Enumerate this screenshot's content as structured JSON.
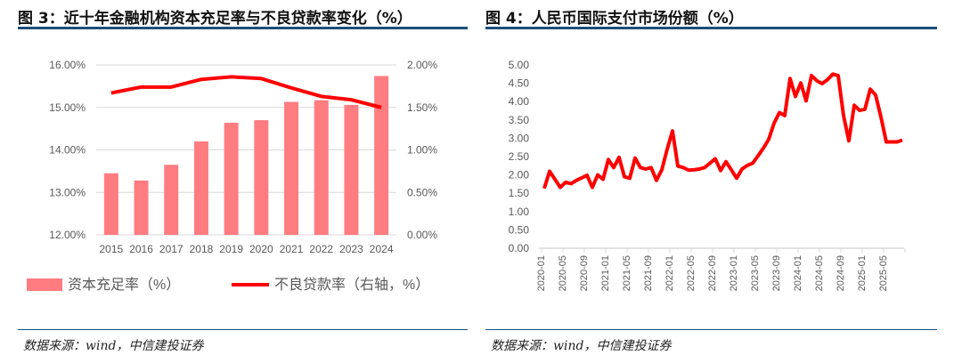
{
  "left": {
    "title": "图 3：近十年金融机构资本充足率与不良贷款率变化（%）",
    "source": "数据来源：wind，中信建投证券"
  },
  "right": {
    "title": "图 4：人民币国际支付市场份额（%）",
    "source": "数据来源：wind，中信建投证券"
  },
  "chart_data": [
    {
      "type": "bar+line",
      "title": "近十年金融机构资本充足率与不良贷款率变化（%）",
      "categories": [
        "2015",
        "2016",
        "2017",
        "2018",
        "2019",
        "2020",
        "2021",
        "2022",
        "2023",
        "2024"
      ],
      "series": [
        {
          "name": "资本充足率（%）",
          "type": "bar",
          "axis": "left",
          "color": "#ff7c80",
          "values": [
            13.45,
            13.28,
            13.65,
            14.2,
            14.64,
            14.7,
            15.13,
            15.17,
            15.06,
            15.74
          ]
        },
        {
          "name": "不良贷款率（右轴，%）",
          "type": "line",
          "axis": "right",
          "color": "#ff0000",
          "values": [
            1.67,
            1.74,
            1.74,
            1.83,
            1.86,
            1.84,
            1.73,
            1.63,
            1.59,
            1.5
          ]
        }
      ],
      "yleft": {
        "lim": [
          12,
          16
        ],
        "ticks": [
          "12.00%",
          "13.00%",
          "14.00%",
          "15.00%",
          "16.00%"
        ]
      },
      "yright": {
        "lim": [
          0,
          2
        ],
        "ticks": [
          "0.00%",
          "0.50%",
          "1.00%",
          "1.50%",
          "2.00%"
        ]
      },
      "legend": "bottom"
    },
    {
      "type": "line",
      "title": "人民币国际支付市场份额（%）",
      "x_start": "2020-01",
      "x_end": "2025-08",
      "x_ticks": [
        "2020-01",
        "2020-05",
        "2020-09",
        "2021-01",
        "2021-05",
        "2021-09",
        "2022-01",
        "2022-05",
        "2022-09",
        "2023-01",
        "2023-05",
        "2023-09",
        "2024-01",
        "2024-05",
        "2024-09",
        "2025-01",
        "2025-05"
      ],
      "ylim": [
        0,
        5
      ],
      "y_ticks": [
        "0.00",
        "0.50",
        "1.00",
        "1.50",
        "2.00",
        "2.50",
        "3.00",
        "3.50",
        "4.00",
        "4.50",
        "5.00"
      ],
      "color": "#ff0000",
      "values": [
        1.63,
        2.1,
        1.88,
        1.66,
        1.8,
        1.76,
        1.85,
        1.92,
        1.99,
        1.66,
        2.0,
        1.88,
        2.42,
        2.2,
        2.48,
        1.95,
        1.91,
        2.46,
        2.2,
        2.16,
        2.2,
        1.85,
        2.14,
        2.7,
        3.2,
        2.24,
        2.2,
        2.13,
        2.14,
        2.16,
        2.2,
        2.32,
        2.44,
        2.12,
        2.36,
        2.14,
        1.91,
        2.16,
        2.26,
        2.32,
        2.52,
        2.73,
        2.97,
        3.41,
        3.7,
        3.62,
        4.63,
        4.14,
        4.51,
        4.02,
        4.71,
        4.57,
        4.49,
        4.6,
        4.75,
        4.71,
        3.62,
        2.93,
        3.9,
        3.76,
        3.79,
        4.34,
        4.18,
        3.58,
        2.9,
        2.9,
        2.9,
        2.95
      ]
    }
  ]
}
